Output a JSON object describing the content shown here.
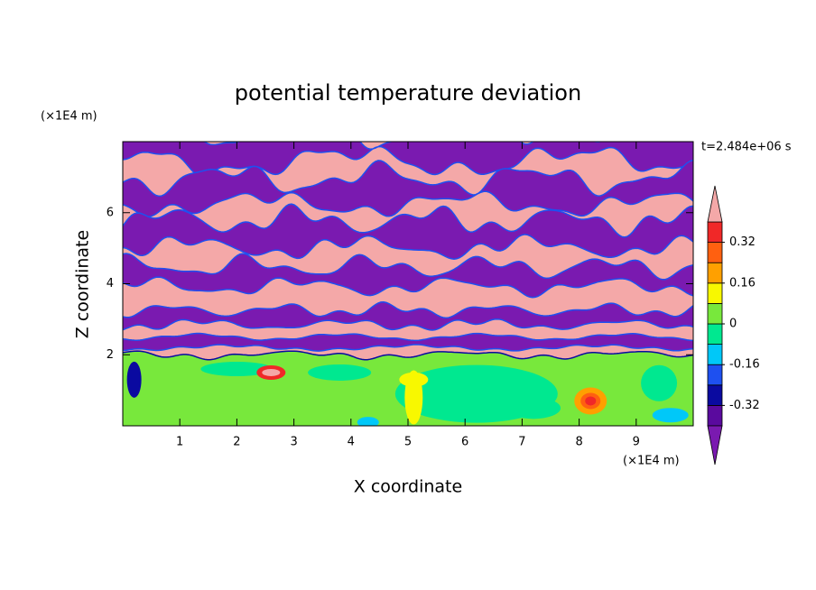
{
  "chart_data": {
    "type": "contour",
    "title": "potential temperature deviation",
    "x_label": "X coordinate",
    "y_label": "Z coordinate",
    "x_unit": "(×1E4 m)",
    "y_unit": "(×1E4 m)",
    "time_label": "t=2.484e+06 s",
    "xlim": [
      0,
      10
    ],
    "xticks": [
      1,
      2,
      3,
      4,
      5,
      6,
      7,
      8,
      9
    ],
    "ylim": [
      0,
      8
    ],
    "yticks": [
      2,
      4,
      6
    ],
    "colorbar": {
      "levels": [
        -0.4,
        -0.32,
        -0.24,
        -0.16,
        -0.08,
        0,
        0.08,
        0.16,
        0.24,
        0.32,
        0.4
      ],
      "colors": [
        "#7a1ab0",
        "#5a0a9e",
        "#0a0aa0",
        "#1e50f0",
        "#00c8f8",
        "#00e890",
        "#78e83c",
        "#f8f800",
        "#ffa000",
        "#ff6010",
        "#f02828",
        "#f4a8a8"
      ],
      "ticks": [
        -0.32,
        -0.16,
        0,
        0.16,
        0.32
      ]
    }
  }
}
